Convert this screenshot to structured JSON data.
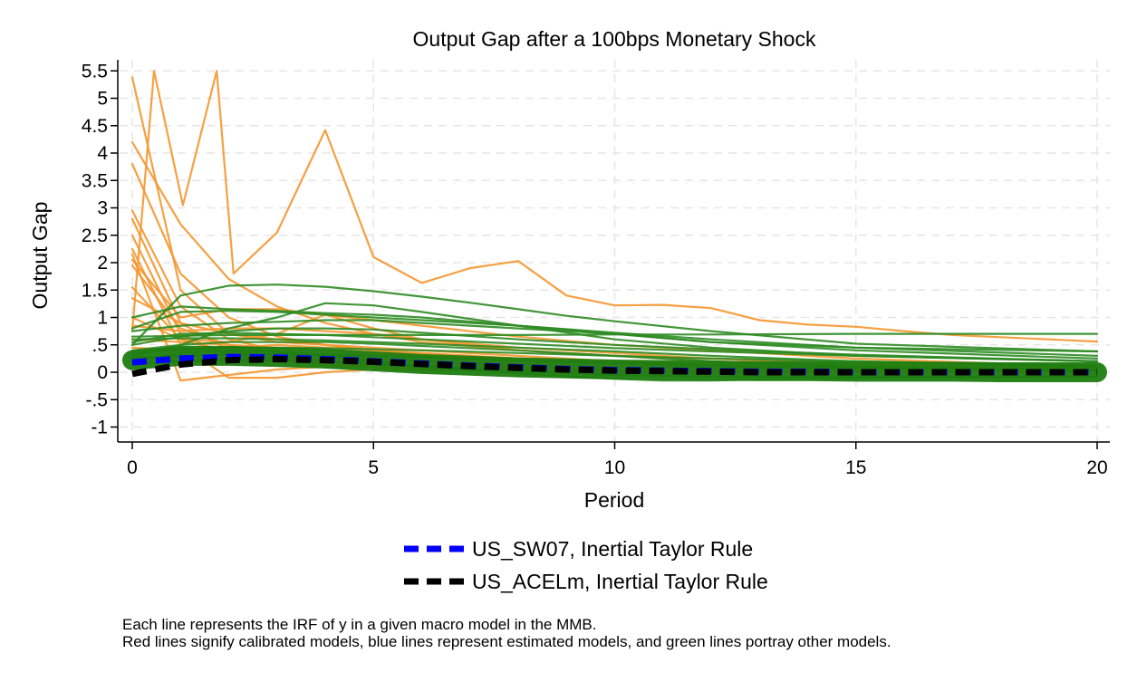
{
  "chart_data": {
    "type": "line",
    "title": "Output Gap after a 100bps Monetary Shock",
    "xlabel": "Period",
    "ylabel": "Output Gap",
    "xlim": [
      0,
      20
    ],
    "ylim": [
      -1,
      5.5
    ],
    "x_ticks": [
      0,
      5,
      10,
      15,
      20
    ],
    "x_tick_labels": [
      "0",
      "5",
      "10",
      "15",
      "20"
    ],
    "y_ticks": [
      -1,
      -0.5,
      0,
      0.5,
      1,
      1.5,
      2,
      2.5,
      3,
      3.5,
      4,
      4.5,
      5,
      5.5
    ],
    "y_tick_labels": [
      "-1",
      "-.5",
      "0",
      ".5",
      "1",
      "1.5",
      "2",
      "2.5",
      "3",
      "3.5",
      "4",
      "4.5",
      "5",
      "5.5"
    ],
    "grid": true,
    "legend_position": "bottom",
    "colors": {
      "calibrated": "#f5962e",
      "other": "#2e8b22",
      "dense_band": "#1e7d10",
      "us_sw07": "#0000ff",
      "us_acelm": "#000000"
    },
    "series": [
      {
        "group": "calibrated",
        "x": [
          0,
          0.45,
          1.05,
          1.75,
          2.1,
          3,
          4,
          5,
          6,
          7,
          8,
          9,
          10,
          11,
          12,
          13,
          14,
          15,
          16,
          17,
          18,
          19,
          20
        ],
        "values": [
          0.75,
          5.5,
          3.05,
          5.5,
          1.8,
          2.55,
          4.42,
          2.1,
          1.63,
          1.9,
          2.03,
          1.4,
          1.22,
          1.23,
          1.17,
          0.95,
          0.87,
          0.83,
          0.75,
          0.68,
          0.64,
          0.6,
          0.56
        ]
      },
      {
        "group": "calibrated",
        "x": [
          0,
          1,
          2,
          3,
          4,
          5,
          6,
          8,
          10,
          12,
          15,
          20
        ],
        "values": [
          5.38,
          1.5,
          0.7,
          0.55,
          0.5,
          0.4,
          0.35,
          0.25,
          0.2,
          0.15,
          0.1,
          0.05
        ]
      },
      {
        "group": "calibrated",
        "x": [
          0,
          1,
          2,
          3,
          4,
          5,
          6,
          8,
          10,
          12,
          15,
          20
        ],
        "values": [
          4.2,
          2.7,
          1.7,
          1.2,
          0.9,
          0.7,
          0.55,
          0.4,
          0.3,
          0.2,
          0.12,
          0.05
        ]
      },
      {
        "group": "calibrated",
        "x": [
          0,
          1,
          2,
          3,
          4,
          5,
          6,
          8,
          10,
          12,
          15,
          20
        ],
        "values": [
          3.8,
          1.8,
          1.0,
          0.65,
          0.5,
          0.4,
          0.3,
          0.2,
          0.15,
          0.1,
          0.05,
          0.02
        ]
      },
      {
        "group": "calibrated",
        "x": [
          0,
          1,
          2,
          3,
          4,
          5,
          6,
          8,
          10,
          12,
          15,
          20
        ],
        "values": [
          2.95,
          1.2,
          0.6,
          0.4,
          0.3,
          0.25,
          0.2,
          0.1,
          0.05,
          0.03,
          0.01,
          0.0
        ]
      },
      {
        "group": "calibrated",
        "x": [
          0,
          1,
          2,
          3,
          4,
          5,
          6,
          8,
          10,
          12,
          15,
          20
        ],
        "values": [
          2.8,
          0.9,
          0.4,
          0.3,
          0.2,
          0.15,
          0.1,
          0.05,
          0.03,
          0.02,
          0.01,
          0.0
        ]
      },
      {
        "group": "calibrated",
        "x": [
          0,
          1,
          2,
          3,
          4,
          5,
          6,
          8,
          10,
          12,
          15,
          20
        ],
        "values": [
          2.5,
          0.7,
          0.3,
          0.2,
          0.15,
          0.1,
          0.05,
          0.02,
          0.0,
          0.0,
          0.0,
          0.0
        ]
      },
      {
        "group": "calibrated",
        "x": [
          0,
          1,
          2,
          3,
          4,
          5,
          6,
          8,
          10,
          12,
          15,
          20
        ],
        "values": [
          2.25,
          0.5,
          -0.1,
          -0.1,
          0.0,
          0.05,
          0.05,
          0.03,
          0.02,
          0.01,
          0.0,
          0.0
        ]
      },
      {
        "group": "calibrated",
        "x": [
          0,
          1,
          2,
          3,
          4,
          5,
          6,
          8,
          10,
          12,
          15,
          20
        ],
        "values": [
          2.15,
          -0.15,
          -0.05,
          0.05,
          0.1,
          0.1,
          0.08,
          0.05,
          0.03,
          0.02,
          0.01,
          0.0
        ]
      },
      {
        "group": "calibrated",
        "x": [
          0,
          1,
          2,
          3,
          4,
          5,
          6,
          8,
          10,
          12,
          15,
          20
        ],
        "values": [
          2.05,
          1.0,
          1.15,
          1.15,
          1.05,
          0.95,
          0.85,
          0.65,
          0.5,
          0.4,
          0.25,
          0.1
        ]
      },
      {
        "group": "calibrated",
        "x": [
          0,
          1,
          2,
          3,
          4,
          5,
          6,
          8,
          10,
          12,
          15,
          20
        ],
        "values": [
          1.95,
          0.8,
          0.5,
          0.35,
          0.3,
          0.25,
          0.2,
          0.15,
          0.1,
          0.08,
          0.05,
          0.02
        ]
      },
      {
        "group": "calibrated",
        "x": [
          0,
          1,
          2,
          3,
          4,
          5,
          6,
          8,
          10,
          12,
          15,
          20
        ],
        "values": [
          1.55,
          0.6,
          0.35,
          0.25,
          0.2,
          0.15,
          0.12,
          0.08,
          0.05,
          0.03,
          0.02,
          0.0
        ]
      },
      {
        "group": "calibrated",
        "x": [
          0,
          1,
          2,
          3,
          4,
          5,
          6,
          8,
          10,
          12,
          15,
          20
        ],
        "values": [
          1.35,
          0.9,
          0.7,
          0.6,
          0.5,
          0.45,
          0.4,
          0.3,
          0.2,
          0.15,
          0.1,
          0.05
        ]
      },
      {
        "group": "calibrated",
        "x": [
          0,
          1,
          2,
          3,
          4,
          5,
          6,
          8,
          10,
          12,
          15,
          20
        ],
        "values": [
          1.0,
          0.6,
          0.55,
          0.7,
          1.05,
          0.8,
          0.6,
          0.4,
          0.3,
          0.25,
          0.15,
          0.1
        ]
      },
      {
        "group": "calibrated",
        "x": [
          0,
          1,
          2,
          3,
          4,
          5,
          6,
          8,
          10,
          12,
          15,
          20
        ],
        "values": [
          0.85,
          0.75,
          0.8,
          0.8,
          0.75,
          0.7,
          0.6,
          0.45,
          0.35,
          0.25,
          0.15,
          0.08
        ]
      },
      {
        "group": "calibrated",
        "x": [
          0,
          1,
          2,
          3,
          4,
          5,
          6,
          8,
          10,
          12,
          15,
          20
        ],
        "values": [
          0.6,
          0.55,
          0.5,
          0.45,
          0.4,
          0.35,
          0.3,
          0.25,
          0.2,
          0.15,
          0.1,
          0.05
        ]
      },
      {
        "group": "calibrated",
        "x": [
          0,
          1,
          2,
          3,
          4,
          5,
          6,
          8,
          10,
          12,
          15,
          20
        ],
        "values": [
          0.45,
          0.4,
          0.45,
          0.5,
          0.45,
          0.4,
          0.35,
          0.25,
          0.2,
          0.15,
          0.1,
          0.05
        ]
      },
      {
        "group": "calibrated",
        "x": [
          0,
          1,
          2,
          3,
          4,
          5,
          6,
          8,
          10,
          12,
          15,
          20
        ],
        "values": [
          0.3,
          0.2,
          0.25,
          0.3,
          0.3,
          0.25,
          0.2,
          0.15,
          0.1,
          0.08,
          0.05,
          0.02
        ]
      },
      {
        "group": "other",
        "x": [
          0,
          1,
          2,
          3,
          4,
          5,
          6,
          7,
          8,
          9,
          10,
          12,
          15,
          20
        ],
        "values": [
          0.5,
          1.4,
          1.58,
          1.6,
          1.56,
          1.48,
          1.38,
          1.27,
          1.15,
          1.03,
          0.93,
          0.75,
          0.52,
          0.38
        ]
      },
      {
        "group": "other",
        "x": [
          0,
          1,
          2,
          3,
          4,
          5,
          6,
          8,
          10,
          12,
          15,
          20
        ],
        "values": [
          1.0,
          1.2,
          1.15,
          1.12,
          1.08,
          1.05,
          1.0,
          0.85,
          0.7,
          0.55,
          0.4,
          0.25
        ]
      },
      {
        "group": "other",
        "x": [
          0,
          1,
          2,
          3,
          4,
          5,
          6,
          8,
          10,
          12,
          15,
          20
        ],
        "values": [
          0.3,
          0.5,
          0.8,
          1.0,
          1.26,
          1.22,
          1.1,
          0.85,
          0.6,
          0.45,
          0.3,
          0.2
        ]
      },
      {
        "group": "other",
        "x": [
          0,
          1,
          2,
          3,
          4,
          5,
          6,
          8,
          10,
          12,
          15,
          20
        ],
        "values": [
          0.75,
          0.85,
          0.9,
          0.92,
          0.95,
          0.95,
          0.9,
          0.8,
          0.7,
          0.55,
          0.45,
          0.38
        ]
      },
      {
        "group": "other",
        "x": [
          0,
          2,
          4,
          6,
          8,
          10,
          12,
          15,
          20
        ],
        "values": [
          0.65,
          0.68,
          0.68,
          0.68,
          0.68,
          0.69,
          0.69,
          0.7,
          0.7
        ]
      },
      {
        "group": "other",
        "x": [
          0,
          1,
          2,
          3,
          4,
          5,
          6,
          8,
          10,
          12,
          15,
          20
        ],
        "values": [
          0.4,
          0.5,
          0.55,
          0.55,
          0.55,
          0.52,
          0.48,
          0.4,
          0.3,
          0.2,
          0.1,
          0.05
        ]
      },
      {
        "group": "other",
        "x": [
          0,
          1,
          2,
          3,
          4,
          5,
          6,
          8,
          10,
          11,
          12,
          15,
          20
        ],
        "values": [
          0.2,
          0.35,
          0.4,
          0.38,
          0.3,
          0.2,
          0.1,
          -0.02,
          -0.12,
          -0.15,
          -0.15,
          -0.1,
          -0.08
        ]
      },
      {
        "group": "other",
        "x": [
          0,
          1,
          2,
          3,
          4,
          5,
          6,
          8,
          10,
          12,
          15,
          20
        ],
        "values": [
          0.5,
          0.65,
          0.75,
          0.8,
          0.8,
          0.78,
          0.72,
          0.6,
          0.5,
          0.42,
          0.32,
          0.2
        ]
      },
      {
        "group": "other",
        "x": [
          0,
          1,
          2,
          3,
          4,
          5,
          6,
          8,
          10,
          12,
          15,
          20
        ],
        "values": [
          0.8,
          1.1,
          1.12,
          1.1,
          1.05,
          1.0,
          0.95,
          0.85,
          0.72,
          0.6,
          0.45,
          0.3
        ]
      },
      {
        "group": "other",
        "x": [
          0,
          1,
          2,
          3,
          4,
          5,
          6,
          8,
          10,
          12,
          15,
          20
        ],
        "values": [
          0.35,
          0.42,
          0.45,
          0.45,
          0.44,
          0.42,
          0.4,
          0.35,
          0.3,
          0.25,
          0.2,
          0.12
        ]
      },
      {
        "group": "other",
        "x": [
          0,
          1,
          2,
          3,
          4,
          5,
          6,
          8,
          10,
          12,
          15,
          20
        ],
        "values": [
          0.6,
          0.62,
          0.62,
          0.6,
          0.58,
          0.55,
          0.52,
          0.45,
          0.38,
          0.3,
          0.2,
          0.1
        ]
      },
      {
        "group": "other",
        "x": [
          0,
          1,
          2,
          3,
          4,
          5,
          6,
          8,
          10,
          12,
          15,
          20
        ],
        "values": [
          0.25,
          0.3,
          0.32,
          0.33,
          0.32,
          0.3,
          0.27,
          0.22,
          0.17,
          0.12,
          0.08,
          0.04
        ]
      },
      {
        "group": "other",
        "x": [
          0,
          1,
          2,
          3,
          4,
          5,
          6,
          8,
          10,
          12,
          15,
          20
        ],
        "values": [
          0.15,
          0.2,
          0.22,
          0.22,
          0.2,
          0.15,
          0.1,
          0.02,
          -0.05,
          -0.08,
          -0.08,
          -0.08
        ]
      },
      {
        "group": "other",
        "x": [
          0,
          1,
          2,
          3,
          4,
          5,
          6,
          8,
          10,
          12,
          15,
          20
        ],
        "values": [
          0.55,
          0.7,
          0.72,
          0.7,
          0.68,
          0.64,
          0.6,
          0.52,
          0.44,
          0.38,
          0.3,
          0.2
        ]
      },
      {
        "group": "dense_band",
        "x": [
          0,
          1,
          2,
          3,
          4,
          5,
          6,
          7,
          8,
          9,
          10,
          11,
          12,
          13,
          14,
          15,
          16,
          17,
          18,
          19,
          20
        ],
        "values": [
          0.22,
          0.3,
          0.3,
          0.28,
          0.25,
          0.2,
          0.15,
          0.12,
          0.09,
          0.07,
          0.05,
          0.04,
          0.03,
          0.02,
          0.02,
          0.01,
          0.01,
          0.01,
          0.0,
          0.0,
          0.0
        ]
      },
      {
        "group": "us_sw07",
        "name": "US_SW07, Inertial Taylor Rule",
        "x": [
          0,
          1,
          2,
          3,
          4,
          5,
          6,
          7,
          8,
          9,
          10,
          11,
          12,
          13,
          14,
          15,
          16,
          17,
          18,
          19,
          20
        ],
        "values": [
          0.18,
          0.25,
          0.28,
          0.27,
          0.24,
          0.2,
          0.16,
          0.12,
          0.09,
          0.06,
          0.04,
          0.03,
          0.02,
          0.01,
          0.01,
          0.0,
          0.0,
          0.0,
          0.0,
          0.0,
          0.0
        ]
      },
      {
        "group": "us_acelm",
        "name": "US_ACELm, Inertial Taylor Rule",
        "x": [
          0,
          1,
          2,
          3,
          4,
          5,
          6,
          7,
          8,
          9,
          10,
          11,
          12,
          13,
          14,
          15,
          16,
          17,
          18,
          19,
          20
        ],
        "values": [
          -0.03,
          0.14,
          0.22,
          0.24,
          0.22,
          0.19,
          0.15,
          0.11,
          0.08,
          0.05,
          0.03,
          0.02,
          0.01,
          0.0,
          0.0,
          0.0,
          0.0,
          0.0,
          0.0,
          0.0,
          0.0
        ]
      }
    ],
    "legend": [
      {
        "label": "US_SW07, Inertial Taylor Rule",
        "color": "#0000ff"
      },
      {
        "label": "US_ACELm, Inertial Taylor Rule",
        "color": "#000000"
      }
    ]
  },
  "note": {
    "line1": "Each line represents the IRF of y in a given macro model in the MMB.",
    "line2": "Red lines signify calibrated models, blue lines represent estimated models, and green lines portray other models."
  }
}
